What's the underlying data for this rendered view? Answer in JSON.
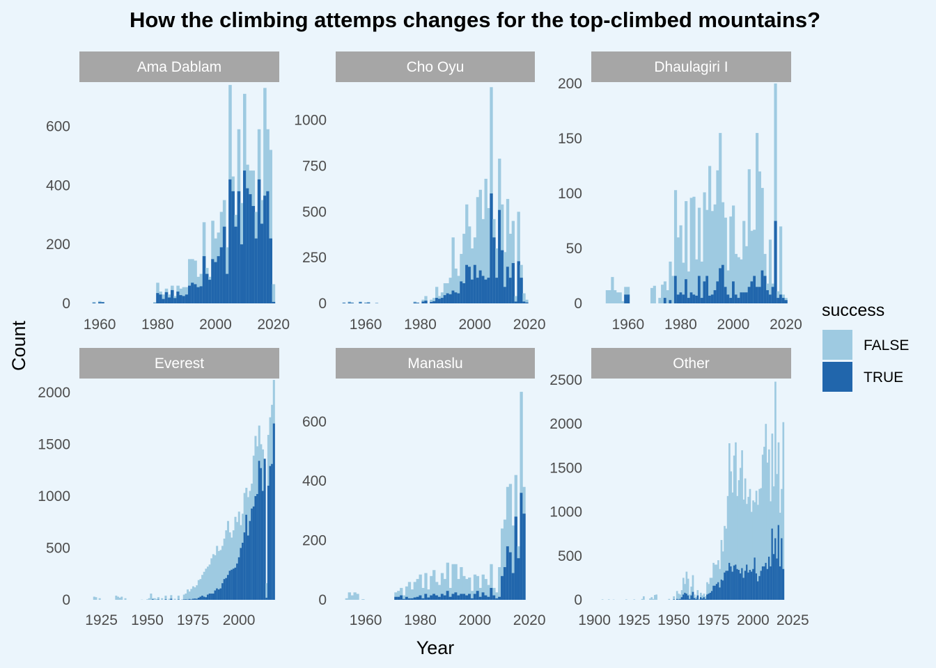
{
  "chart_data": {
    "type": "bar",
    "stacked": true,
    "title": "How the climbing attemps changes for the top-climbed  mountains?",
    "xlabel": "Year",
    "ylabel": "Count",
    "grid": false,
    "legend": {
      "title": "success",
      "placement": "right",
      "entries": [
        {
          "label": "FALSE",
          "color": "#9ECAE1"
        },
        {
          "label": "TRUE",
          "color": "#2166AC"
        }
      ]
    },
    "colors": {
      "background": "#EBF5FC",
      "strip": "#A6A6A6",
      "false": "#9ECAE1",
      "true": "#2166AC"
    },
    "panels": [
      {
        "name": "Ama Dablam",
        "xlim": [
          1953,
          2022
        ],
        "ylim": [
          0,
          745
        ],
        "xticks": [
          1960,
          1980,
          2000,
          2020
        ],
        "yticks": [
          0,
          200,
          400,
          600
        ],
        "x": [
          1958,
          1960,
          1961,
          1979,
          1980,
          1981,
          1982,
          1983,
          1984,
          1985,
          1986,
          1987,
          1988,
          1989,
          1990,
          1991,
          1992,
          1993,
          1994,
          1995,
          1996,
          1997,
          1998,
          1999,
          2000,
          2001,
          2002,
          2003,
          2004,
          2005,
          2006,
          2007,
          2008,
          2009,
          2010,
          2011,
          2012,
          2013,
          2014,
          2015,
          2016,
          2017,
          2018,
          2019,
          2020
        ],
        "total": [
          5,
          8,
          5,
          4,
          70,
          40,
          30,
          50,
          30,
          60,
          25,
          60,
          50,
          55,
          55,
          150,
          150,
          145,
          90,
          100,
          275,
          120,
          90,
          280,
          220,
          240,
          310,
          350,
          190,
          740,
          430,
          300,
          590,
          340,
          710,
          470,
          450,
          450,
          310,
          590,
          350,
          730,
          590,
          520,
          65
        ],
        "success": [
          2,
          4,
          4,
          1,
          35,
          30,
          15,
          38,
          20,
          45,
          18,
          40,
          28,
          25,
          30,
          60,
          70,
          65,
          55,
          58,
          160,
          100,
          80,
          150,
          140,
          160,
          190,
          260,
          100,
          420,
          380,
          260,
          380,
          200,
          450,
          390,
          370,
          330,
          220,
          420,
          270,
          365,
          380,
          220,
          5
        ]
      },
      {
        "name": "Cho Oyu",
        "xlim": [
          1949,
          2022
        ],
        "ylim": [
          0,
          1200
        ],
        "xticks": [
          1960,
          1980,
          2000,
          2020
        ],
        "yticks": [
          0,
          250,
          500,
          750,
          1000
        ],
        "x": [
          1952,
          1954,
          1955,
          1958,
          1960,
          1961,
          1964,
          1978,
          1979,
          1981,
          1982,
          1984,
          1985,
          1986,
          1987,
          1988,
          1989,
          1990,
          1991,
          1992,
          1993,
          1994,
          1995,
          1996,
          1997,
          1998,
          1999,
          2000,
          2001,
          2002,
          2003,
          2004,
          2005,
          2006,
          2007,
          2008,
          2009,
          2010,
          2011,
          2012,
          2013,
          2014,
          2015,
          2016,
          2017,
          2018,
          2019
        ],
        "total": [
          5,
          10,
          5,
          10,
          5,
          8,
          3,
          10,
          5,
          20,
          40,
          20,
          30,
          90,
          40,
          60,
          110,
          110,
          140,
          360,
          190,
          150,
          270,
          380,
          540,
          420,
          300,
          360,
          580,
          620,
          460,
          680,
          520,
          1180,
          460,
          300,
          790,
          540,
          280,
          570,
          380,
          450,
          40,
          500,
          210,
          55,
          20
        ],
        "success": [
          3,
          5,
          3,
          6,
          2,
          4,
          1,
          5,
          3,
          10,
          15,
          8,
          12,
          30,
          25,
          30,
          45,
          55,
          50,
          70,
          60,
          55,
          120,
          110,
          210,
          200,
          130,
          210,
          140,
          180,
          150,
          130,
          140,
          600,
          360,
          140,
          510,
          290,
          90,
          200,
          140,
          220,
          10,
          230,
          140,
          10,
          5
        ]
      },
      {
        "name": "Dhaulagiri I",
        "xlim": [
          1946,
          2022
        ],
        "ylim": [
          0,
          200
        ],
        "xticks": [
          1960,
          1980,
          2000,
          2020
        ],
        "yticks": [
          0,
          50,
          100,
          150,
          200
        ],
        "x": [
          1950,
          1951,
          1952,
          1953,
          1954,
          1955,
          1956,
          1957,
          1958,
          1959,
          1960,
          1961,
          1962,
          1963,
          1964,
          1965,
          1966,
          1967,
          1968,
          1969,
          1970,
          1971,
          1972,
          1973,
          1974,
          1975,
          1976,
          1977,
          1978,
          1979,
          1980,
          1981,
          1982,
          1983,
          1984,
          1985,
          1986,
          1987,
          1988,
          1989,
          1990,
          1991,
          1992,
          1993,
          1994,
          1995,
          1996,
          1997,
          1998,
          1999,
          2000,
          2001,
          2002,
          2003,
          2004,
          2005,
          2006,
          2007,
          2008,
          2009,
          2010,
          2011,
          2012,
          2013,
          2014,
          2015,
          2016,
          2017,
          2018,
          2019,
          2020
        ],
        "total": [
          0,
          0,
          12,
          12,
          24,
          12,
          10,
          10,
          2,
          15,
          15,
          0,
          0,
          0,
          0,
          0,
          0,
          0,
          0,
          14,
          16,
          0,
          5,
          17,
          20,
          12,
          38,
          25,
          103,
          60,
          71,
          37,
          93,
          29,
          96,
          97,
          40,
          87,
          38,
          101,
          85,
          125,
          84,
          90,
          121,
          155,
          92,
          78,
          30,
          79,
          89,
          45,
          42,
          40,
          75,
          52,
          122,
          66,
          67,
          155,
          120,
          105,
          45,
          18,
          58,
          18,
          200,
          11,
          70,
          8,
          5
        ],
        "success": [
          0,
          0,
          0,
          0,
          0,
          0,
          0,
          0,
          0,
          8,
          8,
          0,
          0,
          0,
          0,
          0,
          0,
          0,
          0,
          0,
          0,
          0,
          0,
          0,
          5,
          0,
          3,
          0,
          25,
          8,
          10,
          8,
          22,
          5,
          10,
          8,
          7,
          25,
          5,
          20,
          25,
          7,
          8,
          12,
          20,
          32,
          35,
          15,
          8,
          5,
          20,
          8,
          5,
          10,
          10,
          10,
          15,
          20,
          25,
          15,
          15,
          30,
          25,
          12,
          8,
          15,
          75,
          5,
          8,
          5,
          3
        ]
      },
      {
        "name": "Everest",
        "xlim": [
          1913,
          2022
        ],
        "ylim": [
          0,
          2120
        ],
        "xticks": [
          1925,
          1950,
          1975,
          2000
        ],
        "yticks": [
          0,
          500,
          1000,
          1500,
          2000
        ],
        "x": [
          1921,
          1922,
          1924,
          1933,
          1934,
          1935,
          1936,
          1938,
          1947,
          1950,
          1951,
          1952,
          1953,
          1954,
          1955,
          1956,
          1958,
          1960,
          1962,
          1963,
          1965,
          1967,
          1969,
          1970,
          1971,
          1972,
          1973,
          1974,
          1975,
          1976,
          1977,
          1978,
          1979,
          1980,
          1981,
          1982,
          1983,
          1984,
          1985,
          1986,
          1987,
          1988,
          1989,
          1990,
          1991,
          1992,
          1993,
          1994,
          1995,
          1996,
          1997,
          1998,
          1999,
          2000,
          2001,
          2002,
          2003,
          2004,
          2005,
          2006,
          2007,
          2008,
          2009,
          2010,
          2011,
          2012,
          2013,
          2014,
          2015,
          2016,
          2017,
          2018,
          2019
        ],
        "total": [
          30,
          25,
          15,
          40,
          30,
          20,
          30,
          15,
          2,
          5,
          15,
          60,
          15,
          15,
          8,
          25,
          15,
          40,
          10,
          45,
          10,
          40,
          5,
          50,
          60,
          100,
          80,
          105,
          130,
          120,
          140,
          190,
          200,
          240,
          270,
          300,
          320,
          340,
          400,
          440,
          430,
          520,
          470,
          480,
          520,
          590,
          670,
          760,
          650,
          600,
          670,
          800,
          750,
          850,
          720,
          830,
          1030,
          1080,
          990,
          1050,
          1120,
          1390,
          1580,
          1480,
          1680,
          1500,
          1450,
          1310,
          160,
          1590,
          1760,
          1880,
          2120
        ],
        "success": [
          0,
          0,
          0,
          0,
          0,
          0,
          0,
          0,
          0,
          0,
          0,
          0,
          5,
          0,
          0,
          3,
          0,
          5,
          0,
          10,
          0,
          3,
          0,
          4,
          5,
          3,
          8,
          4,
          10,
          12,
          10,
          20,
          30,
          40,
          30,
          25,
          50,
          60,
          60,
          60,
          90,
          110,
          100,
          110,
          160,
          200,
          210,
          240,
          280,
          290,
          300,
          310,
          350,
          410,
          500,
          550,
          650,
          820,
          620,
          760,
          880,
          900,
          1000,
          1020,
          1340,
          1270,
          1050,
          1360,
          20,
          1100,
          1290,
          1310,
          1700
        ]
      },
      {
        "name": "Manaslu",
        "xlim": [
          1949,
          2022
        ],
        "ylim": [
          0,
          740
        ],
        "xticks": [
          1960,
          1980,
          2000,
          2020
        ],
        "yticks": [
          0,
          200,
          400,
          600
        ],
        "x": [
          1953,
          1954,
          1955,
          1956,
          1957,
          1959,
          1971,
          1972,
          1973,
          1974,
          1975,
          1976,
          1977,
          1978,
          1979,
          1980,
          1981,
          1982,
          1983,
          1984,
          1985,
          1986,
          1987,
          1988,
          1989,
          1990,
          1991,
          1992,
          1993,
          1994,
          1995,
          1996,
          1997,
          1998,
          1999,
          2000,
          2001,
          2002,
          2003,
          2004,
          2005,
          2006,
          2007,
          2008,
          2009,
          2010,
          2011,
          2012,
          2013,
          2014,
          2015,
          2016,
          2017,
          2018
        ],
        "total": [
          5,
          25,
          15,
          25,
          20,
          2,
          25,
          30,
          40,
          15,
          45,
          60,
          35,
          60,
          70,
          85,
          40,
          90,
          35,
          80,
          100,
          60,
          50,
          90,
          70,
          125,
          40,
          120,
          120,
          70,
          110,
          80,
          70,
          75,
          30,
          85,
          80,
          40,
          85,
          70,
          50,
          120,
          40,
          25,
          110,
          240,
          270,
          380,
          390,
          250,
          420,
          180,
          700,
          380
        ],
        "success": [
          0,
          0,
          0,
          0,
          0,
          0,
          10,
          10,
          15,
          3,
          10,
          5,
          5,
          8,
          10,
          15,
          5,
          20,
          8,
          15,
          20,
          15,
          10,
          20,
          15,
          30,
          10,
          20,
          25,
          15,
          20,
          20,
          15,
          20,
          5,
          20,
          30,
          10,
          25,
          15,
          10,
          40,
          15,
          5,
          10,
          80,
          110,
          180,
          160,
          90,
          280,
          140,
          360,
          290
        ]
      },
      {
        "name": "Other",
        "xlim": [
          1898,
          2024
        ],
        "ylim": [
          0,
          2500
        ],
        "xticks": [
          1900,
          1925,
          1950,
          1975,
          2000,
          2025
        ],
        "yticks": [
          0,
          500,
          1000,
          1500,
          2000,
          2500
        ],
        "x": [
          1905,
          1909,
          1912,
          1920,
          1925,
          1930,
          1931,
          1935,
          1936,
          1937,
          1938,
          1939,
          1947,
          1950,
          1952,
          1953,
          1954,
          1955,
          1956,
          1957,
          1958,
          1959,
          1960,
          1961,
          1962,
          1963,
          1964,
          1965,
          1966,
          1967,
          1968,
          1969,
          1970,
          1971,
          1972,
          1973,
          1974,
          1975,
          1976,
          1977,
          1978,
          1979,
          1980,
          1981,
          1982,
          1983,
          1984,
          1985,
          1986,
          1987,
          1988,
          1989,
          1990,
          1991,
          1992,
          1993,
          1994,
          1995,
          1996,
          1997,
          1998,
          1999,
          2000,
          2001,
          2002,
          2003,
          2004,
          2005,
          2006,
          2007,
          2008,
          2009,
          2010,
          2011,
          2012,
          2013,
          2014,
          2015,
          2016,
          2017,
          2018,
          2019
        ],
        "total": [
          5,
          5,
          3,
          5,
          5,
          10,
          40,
          15,
          30,
          10,
          55,
          60,
          10,
          40,
          100,
          70,
          60,
          110,
          250,
          180,
          320,
          240,
          60,
          150,
          280,
          60,
          30,
          110,
          10,
          80,
          50,
          70,
          40,
          200,
          180,
          250,
          250,
          420,
          400,
          400,
          450,
          350,
          680,
          550,
          840,
          810,
          1180,
          1780,
          1460,
          1220,
          1640,
          1790,
          1180,
          1360,
          1500,
          1700,
          1140,
          1380,
          1090,
          1170,
          1260,
          1000,
          1130,
          1110,
          1240,
          1080,
          1260,
          1270,
          1650,
          1740,
          2000,
          1560,
          1710,
          1120,
          1890,
          1290,
          2480,
          1430,
          1790,
          990,
          1260,
          2020
        ],
        "success": [
          0,
          0,
          0,
          0,
          0,
          0,
          0,
          0,
          0,
          0,
          0,
          0,
          0,
          5,
          10,
          5,
          10,
          30,
          60,
          80,
          70,
          50,
          10,
          50,
          90,
          20,
          10,
          50,
          3,
          30,
          15,
          30,
          10,
          60,
          70,
          80,
          100,
          160,
          160,
          180,
          200,
          140,
          230,
          220,
          310,
          330,
          330,
          420,
          380,
          320,
          390,
          400,
          350,
          340,
          300,
          360,
          250,
          330,
          400,
          310,
          340,
          320,
          350,
          480,
          300,
          210,
          270,
          330,
          380,
          380,
          420,
          350,
          490,
          380,
          810,
          520,
          700,
          470,
          850,
          380,
          700,
          350
        ]
      }
    ]
  }
}
